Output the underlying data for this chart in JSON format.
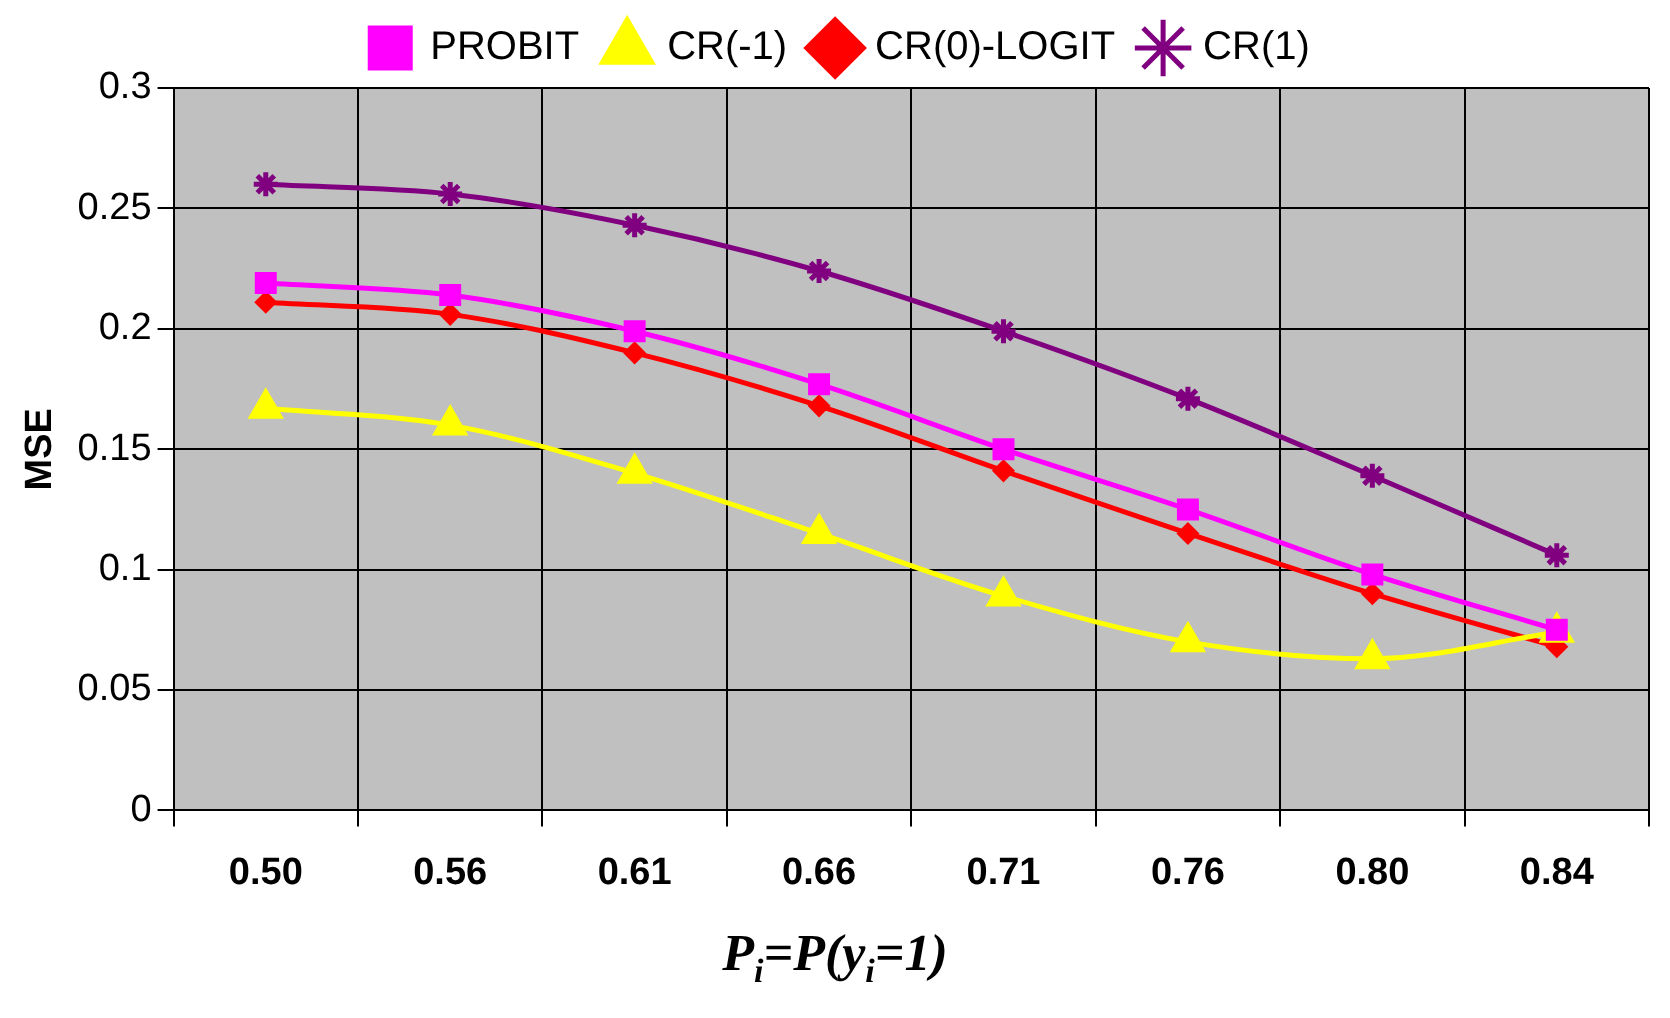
{
  "chart_data": {
    "type": "line",
    "xlabel": "P$_{i}$=P(y$_{i}$=1)",
    "ylabel": "MSE",
    "categories": [
      "0.50",
      "0.56",
      "0.61",
      "0.66",
      "0.71",
      "0.76",
      "0.80",
      "0.84"
    ],
    "ylim": [
      0,
      0.3
    ],
    "yticks": [
      {
        "value": 0,
        "label": "0"
      },
      0.05,
      {
        "value": 0.1,
        "label": "0.1"
      },
      0.15,
      {
        "value": 0.2,
        "label": "0.2"
      },
      0.25,
      {
        "value": 0.3,
        "label": "0.3"
      }
    ],
    "grid": true,
    "legend": "top",
    "series": [
      {
        "name": "PROBIT",
        "color": "#ff00ff",
        "marker": "square",
        "values": [
          0.219,
          0.214,
          0.199,
          0.177,
          0.15,
          0.125,
          0.098,
          0.075
        ]
      },
      {
        "name": "CR(-1)",
        "color": "#ffff00",
        "marker": "triangle",
        "values": [
          0.167,
          0.16,
          0.14,
          0.115,
          0.089,
          0.07,
          0.063,
          0.074
        ]
      },
      {
        "name": "CR(0)-LOGIT",
        "color": "#ff0000",
        "marker": "diamond",
        "values": [
          0.211,
          0.206,
          0.19,
          0.168,
          0.141,
          0.115,
          0.09,
          0.068
        ]
      },
      {
        "name": "CR(1)",
        "color": "#800080",
        "marker": "cross",
        "values": [
          0.26,
          0.256,
          0.243,
          0.224,
          0.199,
          0.171,
          0.139,
          0.106
        ]
      }
    ]
  }
}
